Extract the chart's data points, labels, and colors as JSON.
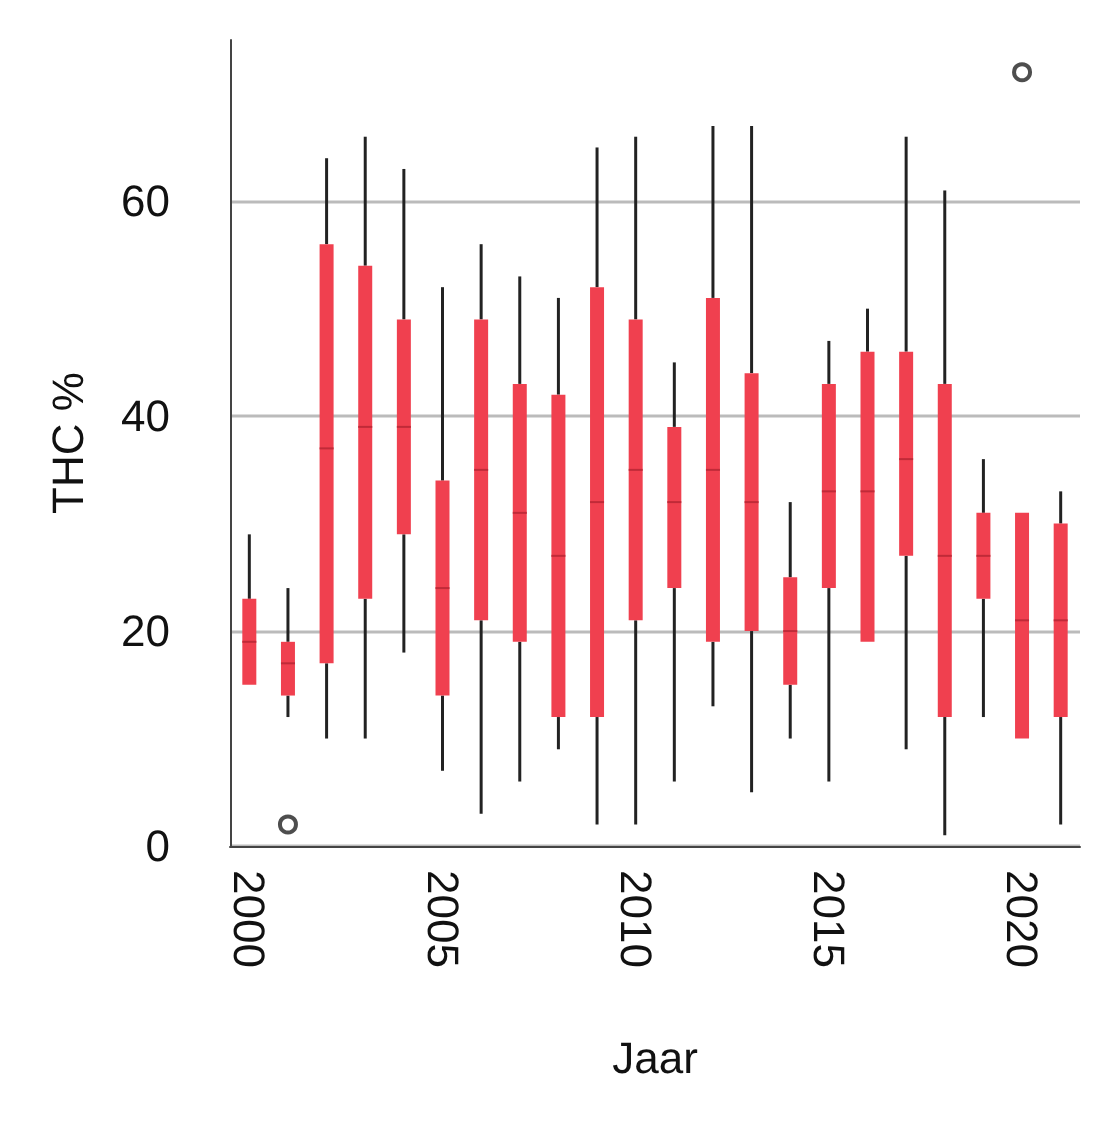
{
  "chart_data": {
    "type": "box",
    "xlabel": "Jaar",
    "ylabel": "THC %",
    "categories": [
      "2000",
      null,
      null,
      null,
      null,
      "2005",
      null,
      null,
      null,
      null,
      "2010",
      null,
      null,
      null,
      null,
      "2015",
      null,
      null,
      null,
      null,
      "2020",
      null
    ],
    "color": "#f0404f",
    "boxes": [
      {
        "low": 15,
        "q1": 15,
        "median": 19,
        "q3": 23,
        "high": 29
      },
      {
        "low": 12,
        "q1": 14,
        "median": 17,
        "q3": 19,
        "high": 24,
        "outliers": [
          2
        ]
      },
      {
        "low": 10,
        "q1": 17,
        "median": 37,
        "q3": 56,
        "high": 64
      },
      {
        "low": 10,
        "q1": 23,
        "median": 39,
        "q3": 54,
        "high": 66
      },
      {
        "low": 18,
        "q1": 29,
        "median": 39,
        "q3": 49,
        "high": 63
      },
      {
        "low": 7,
        "q1": 14,
        "median": 24,
        "q3": 34,
        "high": 52
      },
      {
        "low": 3,
        "q1": 21,
        "median": 35,
        "q3": 49,
        "high": 56
      },
      {
        "low": 6,
        "q1": 19,
        "median": 31,
        "q3": 43,
        "high": 53
      },
      {
        "low": 9,
        "q1": 12,
        "median": 27,
        "q3": 42,
        "high": 51
      },
      {
        "low": 2,
        "q1": 12,
        "median": 32,
        "q3": 52,
        "high": 65
      },
      {
        "low": 2,
        "q1": 21,
        "median": 35,
        "q3": 49,
        "high": 66
      },
      {
        "low": 6,
        "q1": 24,
        "median": 32,
        "q3": 39,
        "high": 45
      },
      {
        "low": 13,
        "q1": 19,
        "median": 35,
        "q3": 51,
        "high": 67
      },
      {
        "low": 5,
        "q1": 20,
        "median": 32,
        "q3": 44,
        "high": 67
      },
      {
        "low": 10,
        "q1": 15,
        "median": 20,
        "q3": 25,
        "high": 32
      },
      {
        "low": 6,
        "q1": 24,
        "median": 33,
        "q3": 43,
        "high": 47
      },
      {
        "low": 19,
        "q1": 19,
        "median": 33,
        "q3": 46,
        "high": 50
      },
      {
        "low": 9,
        "q1": 27,
        "median": 36,
        "q3": 46,
        "high": 66
      },
      {
        "low": 1,
        "q1": 12,
        "median": 27,
        "q3": 43,
        "high": 61
      },
      {
        "low": 12,
        "q1": 23,
        "median": 27,
        "q3": 31,
        "high": 36
      },
      {
        "low": 10,
        "q1": 10,
        "median": 21,
        "q3": 31,
        "high": 31,
        "outliers": [
          72
        ]
      },
      {
        "low": 2,
        "q1": 12,
        "median": 21,
        "q3": 30,
        "high": 33
      }
    ],
    "ylim": [
      0,
      75
    ],
    "yticks": [
      0,
      20,
      40,
      60
    ],
    "grid": "y"
  }
}
